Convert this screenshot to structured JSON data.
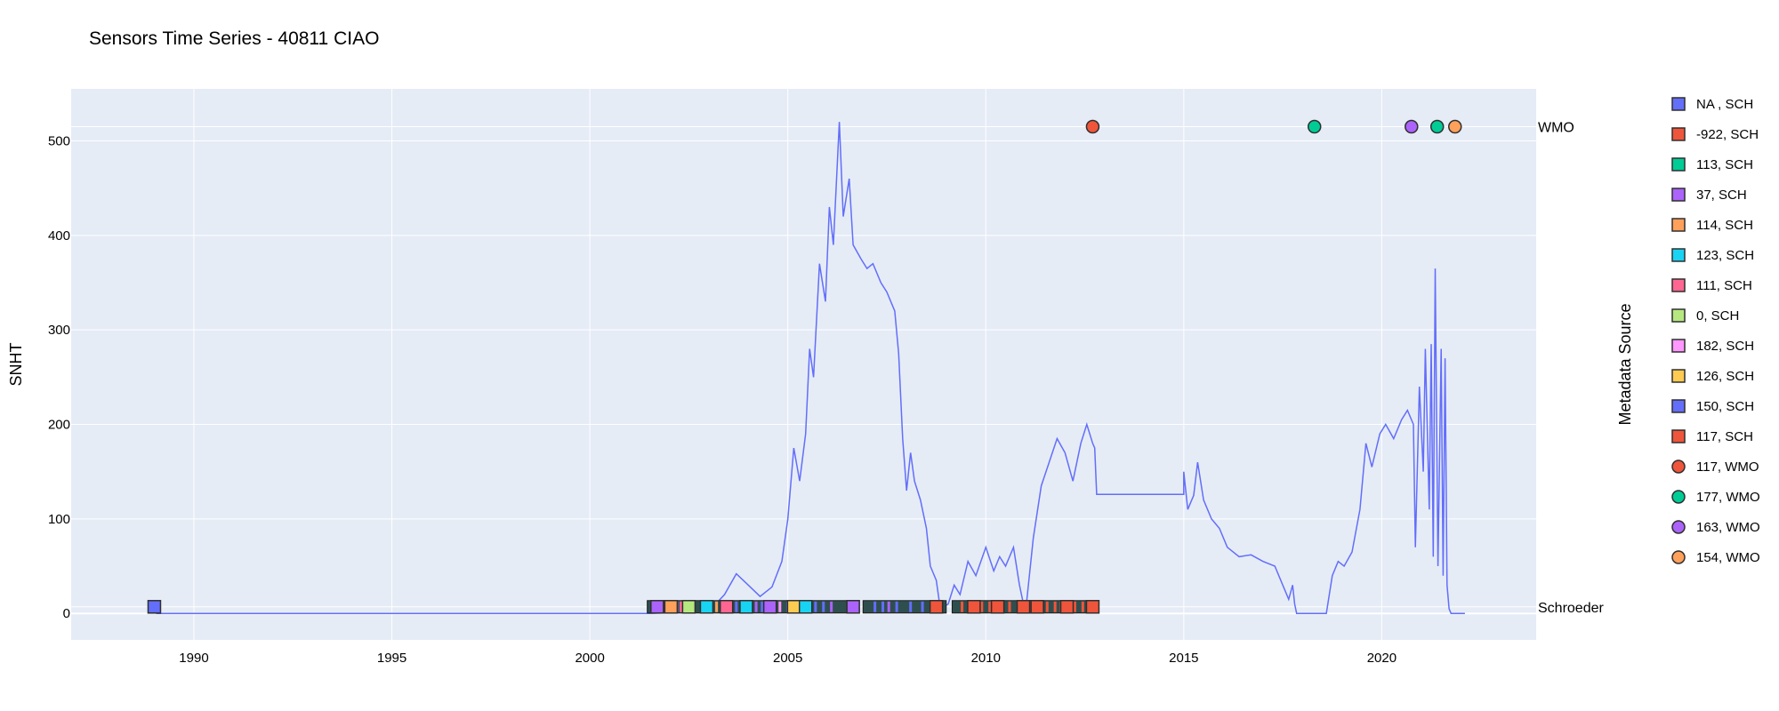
{
  "chart_data": {
    "type": "line",
    "title": "Sensors Time Series - 40811 CIAO",
    "xlabel": "",
    "ylabel": "SNHT",
    "legend_title": "Metadata Source",
    "xlim": [
      1986.9,
      2023.9
    ],
    "ylim": [
      -28,
      555
    ],
    "x_ticks": [
      1990,
      1995,
      2000,
      2005,
      2010,
      2015,
      2020
    ],
    "x_tick_labels": [
      "1990",
      "1995",
      "2000",
      "2005",
      "2010",
      "2015",
      "2020"
    ],
    "y_ticks": [
      0,
      100,
      200,
      300,
      400,
      500
    ],
    "y_tick_labels": [
      "0",
      "100",
      "200",
      "300",
      "400",
      "500"
    ],
    "grid": true,
    "legend_position": "right",
    "plot_background": "#e5ecf6",
    "right_labels": [
      {
        "text": "WMO",
        "y": 515
      },
      {
        "text": "Schroeder",
        "y": 7
      }
    ],
    "series": [
      {
        "color": "#636efa",
        "points": [
          [
            1989.05,
            0
          ],
          [
            2001.5,
            0
          ],
          [
            2003.0,
            2
          ],
          [
            2003.4,
            20
          ],
          [
            2003.7,
            42
          ],
          [
            2004.0,
            30
          ],
          [
            2004.3,
            18
          ],
          [
            2004.6,
            28
          ],
          [
            2004.85,
            55
          ],
          [
            2005.0,
            100
          ],
          [
            2005.15,
            175
          ],
          [
            2005.3,
            140
          ],
          [
            2005.45,
            190
          ],
          [
            2005.55,
            280
          ],
          [
            2005.65,
            250
          ],
          [
            2005.8,
            370
          ],
          [
            2005.95,
            330
          ],
          [
            2006.05,
            430
          ],
          [
            2006.15,
            390
          ],
          [
            2006.3,
            520
          ],
          [
            2006.4,
            420
          ],
          [
            2006.55,
            460
          ],
          [
            2006.65,
            390
          ],
          [
            2006.85,
            375
          ],
          [
            2007.0,
            365
          ],
          [
            2007.15,
            370
          ],
          [
            2007.35,
            350
          ],
          [
            2007.5,
            340
          ],
          [
            2007.7,
            320
          ],
          [
            2007.8,
            275
          ],
          [
            2007.9,
            185
          ],
          [
            2008.0,
            130
          ],
          [
            2008.1,
            170
          ],
          [
            2008.2,
            140
          ],
          [
            2008.35,
            120
          ],
          [
            2008.5,
            90
          ],
          [
            2008.6,
            50
          ],
          [
            2008.75,
            35
          ],
          [
            2008.85,
            5
          ],
          [
            2009.05,
            10
          ],
          [
            2009.2,
            30
          ],
          [
            2009.35,
            20
          ],
          [
            2009.55,
            55
          ],
          [
            2009.75,
            40
          ],
          [
            2010.0,
            70
          ],
          [
            2010.2,
            45
          ],
          [
            2010.35,
            60
          ],
          [
            2010.5,
            50
          ],
          [
            2010.7,
            70
          ],
          [
            2010.85,
            30
          ],
          [
            2011.0,
            0
          ],
          [
            2011.2,
            80
          ],
          [
            2011.4,
            135
          ],
          [
            2011.6,
            160
          ],
          [
            2011.8,
            185
          ],
          [
            2012.0,
            170
          ],
          [
            2012.2,
            140
          ],
          [
            2012.4,
            180
          ],
          [
            2012.55,
            200
          ],
          [
            2012.7,
            180
          ],
          [
            2012.75,
            175
          ],
          [
            2012.8,
            126
          ],
          [
            2015.0,
            126
          ],
          [
            2015.0,
            150
          ],
          [
            2015.1,
            110
          ],
          [
            2015.25,
            125
          ],
          [
            2015.35,
            160
          ],
          [
            2015.5,
            120
          ],
          [
            2015.7,
            100
          ],
          [
            2015.9,
            90
          ],
          [
            2016.1,
            70
          ],
          [
            2016.4,
            60
          ],
          [
            2016.7,
            62
          ],
          [
            2017.0,
            55
          ],
          [
            2017.3,
            50
          ],
          [
            2017.5,
            30
          ],
          [
            2017.65,
            15
          ],
          [
            2017.75,
            30
          ],
          [
            2017.8,
            10
          ],
          [
            2017.85,
            0
          ],
          [
            2018.6,
            0
          ],
          [
            2018.75,
            40
          ],
          [
            2018.9,
            55
          ],
          [
            2019.05,
            50
          ],
          [
            2019.25,
            65
          ],
          [
            2019.45,
            110
          ],
          [
            2019.6,
            180
          ],
          [
            2019.75,
            155
          ],
          [
            2019.95,
            190
          ],
          [
            2020.1,
            200
          ],
          [
            2020.3,
            185
          ],
          [
            2020.5,
            205
          ],
          [
            2020.65,
            215
          ],
          [
            2020.8,
            200
          ],
          [
            2020.85,
            70
          ],
          [
            2020.95,
            240
          ],
          [
            2021.05,
            150
          ],
          [
            2021.1,
            280
          ],
          [
            2021.2,
            110
          ],
          [
            2021.25,
            285
          ],
          [
            2021.3,
            60
          ],
          [
            2021.35,
            365
          ],
          [
            2021.42,
            50
          ],
          [
            2021.5,
            280
          ],
          [
            2021.55,
            40
          ],
          [
            2021.6,
            270
          ],
          [
            2021.65,
            30
          ],
          [
            2021.7,
            5
          ],
          [
            2021.75,
            0
          ],
          [
            2022.1,
            0
          ]
        ]
      }
    ],
    "schroeder_markers": [
      {
        "x": 1989.0,
        "color": "#636efa"
      },
      {
        "x": 2001.7,
        "color": "#ab63fa"
      },
      {
        "x": 2002.05,
        "color": "#ffa15a"
      },
      {
        "x": 2002.5,
        "color": "#b6e880"
      },
      {
        "x": 2002.95,
        "color": "#19d3f3"
      },
      {
        "x": 2003.45,
        "color": "#ff6692"
      },
      {
        "x": 2003.95,
        "color": "#19d3f3"
      },
      {
        "x": 2004.55,
        "color": "#ab63fa"
      },
      {
        "x": 2005.15,
        "color": "#fecb52"
      },
      {
        "x": 2005.45,
        "color": "#19d3f3"
      },
      {
        "x": 2006.65,
        "color": "#ab63fa"
      },
      {
        "x": 2008.75,
        "color": "#ef553b"
      },
      {
        "x": 2009.7,
        "color": "#ef553b"
      },
      {
        "x": 2010.3,
        "color": "#ef553b"
      },
      {
        "x": 2010.95,
        "color": "#ef553b"
      },
      {
        "x": 2011.3,
        "color": "#ef553b"
      },
      {
        "x": 2012.05,
        "color": "#ef553b"
      },
      {
        "x": 2012.7,
        "color": "#ef553b"
      }
    ],
    "schroeder_segments": [
      [
        2001.45,
        2006.8
      ],
      [
        2006.9,
        2009.0
      ],
      [
        2009.15,
        2012.85
      ]
    ],
    "schroeder_ticks": [
      {
        "x": 2001.6,
        "color": "#19d3f3"
      },
      {
        "x": 2001.9,
        "color": "#636efa"
      },
      {
        "x": 2002.2,
        "color": "#ab63fa"
      },
      {
        "x": 2002.3,
        "color": "#ff6692"
      },
      {
        "x": 2003.0,
        "color": "#636efa"
      },
      {
        "x": 2003.2,
        "color": "#ffa15a"
      },
      {
        "x": 2003.35,
        "color": "#19d3f3"
      },
      {
        "x": 2003.7,
        "color": "#636efa"
      },
      {
        "x": 2004.2,
        "color": "#ab63fa"
      },
      {
        "x": 2004.35,
        "color": "#636efa"
      },
      {
        "x": 2004.8,
        "color": "#ff97ff"
      },
      {
        "x": 2005.0,
        "color": "#636efa"
      },
      {
        "x": 2005.7,
        "color": "#636efa"
      },
      {
        "x": 2005.9,
        "color": "#636efa"
      },
      {
        "x": 2006.1,
        "color": "#ab63fa"
      },
      {
        "x": 2007.2,
        "color": "#636efa"
      },
      {
        "x": 2007.4,
        "color": "#636efa"
      },
      {
        "x": 2007.55,
        "color": "#ab63fa"
      },
      {
        "x": 2007.75,
        "color": "#636efa"
      },
      {
        "x": 2008.1,
        "color": "#636efa"
      },
      {
        "x": 2008.4,
        "color": "#636efa"
      },
      {
        "x": 2009.4,
        "color": "#ef553b"
      },
      {
        "x": 2009.9,
        "color": "#ef553b"
      },
      {
        "x": 2010.1,
        "color": "#ef553b"
      },
      {
        "x": 2010.6,
        "color": "#ef553b"
      },
      {
        "x": 2011.15,
        "color": "#ef553b"
      },
      {
        "x": 2011.55,
        "color": "#ef553b"
      },
      {
        "x": 2011.75,
        "color": "#ef553b"
      },
      {
        "x": 2011.9,
        "color": "#ef553b"
      },
      {
        "x": 2012.25,
        "color": "#ef553b"
      },
      {
        "x": 2012.45,
        "color": "#ef553b"
      }
    ],
    "wmo_markers": [
      {
        "x": 2012.7,
        "color": "#ef553b"
      },
      {
        "x": 2018.3,
        "color": "#00cc96"
      },
      {
        "x": 2020.75,
        "color": "#ab63fa"
      },
      {
        "x": 2021.4,
        "color": "#00cc96"
      },
      {
        "x": 2021.85,
        "color": "#ffa15a"
      }
    ],
    "legend": [
      {
        "label": "NA , SCH",
        "color": "#636efa",
        "symbol": "square"
      },
      {
        "label": "-922, SCH",
        "color": "#ef553b",
        "symbol": "square"
      },
      {
        "label": "113, SCH",
        "color": "#00cc96",
        "symbol": "square"
      },
      {
        "label": "37, SCH",
        "color": "#ab63fa",
        "symbol": "square"
      },
      {
        "label": "114, SCH",
        "color": "#ffa15a",
        "symbol": "square"
      },
      {
        "label": "123, SCH",
        "color": "#19d3f3",
        "symbol": "square"
      },
      {
        "label": "111, SCH",
        "color": "#ff6692",
        "symbol": "square"
      },
      {
        "label": "0, SCH",
        "color": "#b6e880",
        "symbol": "square"
      },
      {
        "label": "182, SCH",
        "color": "#ff97ff",
        "symbol": "square"
      },
      {
        "label": "126, SCH",
        "color": "#fecb52",
        "symbol": "square"
      },
      {
        "label": "150, SCH",
        "color": "#636efa",
        "symbol": "square"
      },
      {
        "label": "117, SCH",
        "color": "#ef553b",
        "symbol": "square"
      },
      {
        "label": "117, WMO",
        "color": "#ef553b",
        "symbol": "circle"
      },
      {
        "label": "177, WMO",
        "color": "#00cc96",
        "symbol": "circle"
      },
      {
        "label": "163, WMO",
        "color": "#ab63fa",
        "symbol": "circle"
      },
      {
        "label": "154, WMO",
        "color": "#ffa15a",
        "symbol": "circle"
      }
    ]
  }
}
